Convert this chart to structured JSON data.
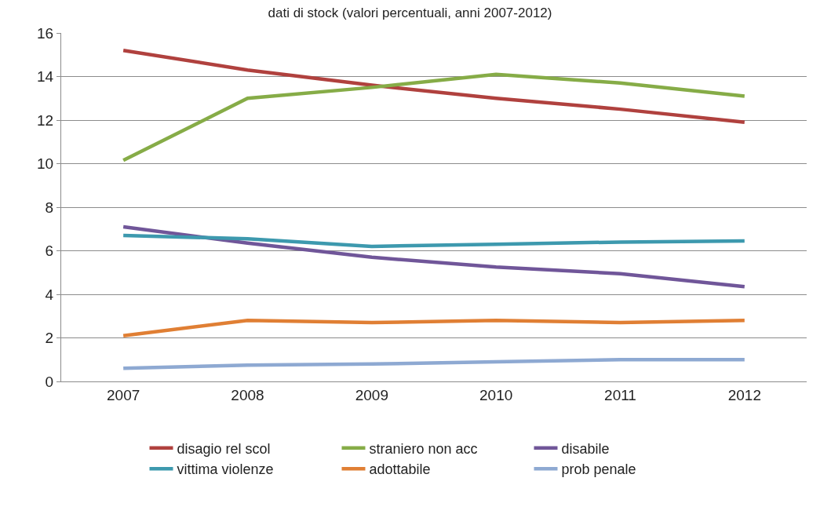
{
  "chart_data": {
    "type": "line",
    "title": "dati di stock (valori percentuali, anni 2007-2012)",
    "categories": [
      "2007",
      "2008",
      "2009",
      "2010",
      "2011",
      "2012"
    ],
    "series": [
      {
        "name": "disagio rel scol",
        "color": "#b0413e",
        "values": [
          15.2,
          14.3,
          13.6,
          13.0,
          12.5,
          11.9
        ]
      },
      {
        "name": "straniero non acc",
        "color": "#86ac47",
        "values": [
          10.15,
          13.0,
          13.5,
          14.1,
          13.7,
          13.1
        ]
      },
      {
        "name": "disabile",
        "color": "#705699",
        "values": [
          7.1,
          6.35,
          5.7,
          5.25,
          4.95,
          4.35
        ]
      },
      {
        "name": "vittima violenze",
        "color": "#3d99ae",
        "values": [
          6.7,
          6.55,
          6.2,
          6.3,
          6.4,
          6.45
        ]
      },
      {
        "name": "adottabile",
        "color": "#e07f34",
        "values": [
          2.1,
          2.8,
          2.7,
          2.8,
          2.7,
          2.8
        ]
      },
      {
        "name": "prob penale",
        "color": "#8ea9d2",
        "values": [
          0.6,
          0.75,
          0.8,
          0.9,
          1.0,
          1.0
        ]
      }
    ],
    "ylim": [
      0,
      16
    ],
    "yticks": [
      0,
      2,
      4,
      6,
      8,
      10,
      12,
      14,
      16
    ],
    "grid": "y",
    "legend": "bottom",
    "marker": "none",
    "line_style": "solid"
  }
}
